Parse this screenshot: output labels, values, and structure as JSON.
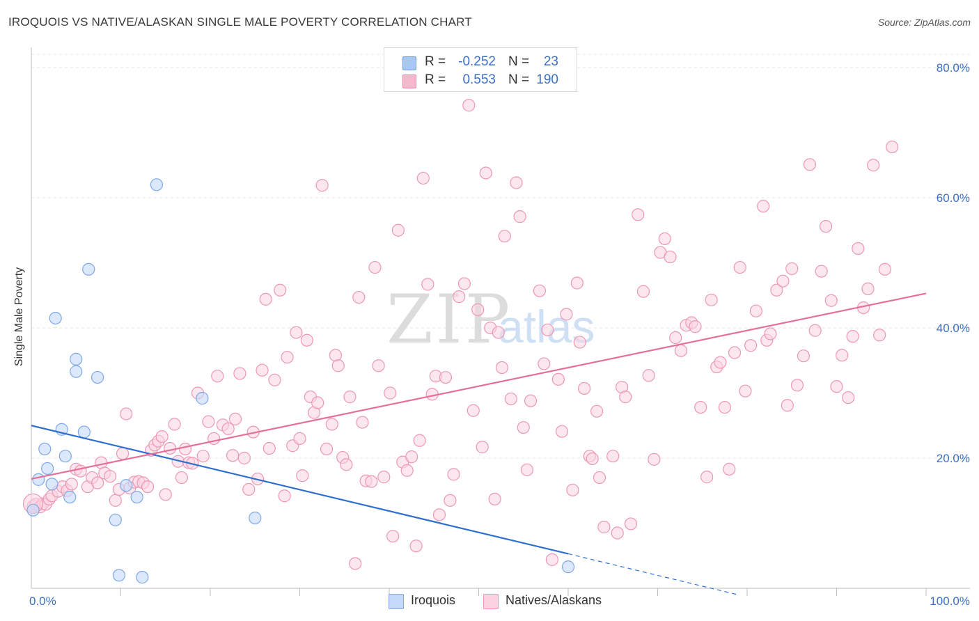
{
  "title": "IROQUOIS VS NATIVE/ALASKAN SINGLE MALE POVERTY CORRELATION CHART",
  "source": "Source: ZipAtlas.com",
  "watermark": {
    "zip": "ZIP",
    "atlas": "atlas"
  },
  "legend": {
    "rows": [
      {
        "r_label": "R =",
        "r_value": "-0.252",
        "n_label": "N =",
        "n_value": "23",
        "color": "#a9c8f0",
        "border": "#6d9fe0"
      },
      {
        "r_label": "R =",
        "r_value": "0.553",
        "n_label": "N =",
        "n_value": "190",
        "color": "#f6b8cc",
        "border": "#e889a8"
      }
    ]
  },
  "bottom_legend": [
    {
      "label": "Iroquois",
      "color": "#c5dafa",
      "border": "#7ea8e6"
    },
    {
      "label": "Natives/Alaskans",
      "color": "#fbd3e0",
      "border": "#ec97b4"
    }
  ],
  "chart_data": {
    "type": "scatter",
    "title": "IROQUOIS VS NATIVE/ALASKAN SINGLE MALE POVERTY CORRELATION CHART",
    "xlabel": "",
    "ylabel": "Single Male Poverty",
    "xlim": [
      0,
      100
    ],
    "ylim": [
      0,
      80
    ],
    "x_tick_labels": [
      "0.0%",
      "100.0%"
    ],
    "y_ticks": [
      20,
      40,
      60,
      80
    ],
    "y_tick_labels": [
      "20.0%",
      "40.0%",
      "60.0%",
      "80.0%"
    ],
    "grid": true,
    "legend_position": "top-center",
    "series": [
      {
        "name": "Iroquois",
        "color": "#7ea8e6",
        "fill": "#c5dafa",
        "line_color": "#2f6fd0",
        "trend": {
          "x0": 0,
          "y0": 25.0,
          "x1": 60,
          "y1": 5.3,
          "dash_to_x": 79,
          "dash_to_y": -1.0
        },
        "points": [
          [
            0.2,
            12.0
          ],
          [
            0.8,
            16.7
          ],
          [
            1.5,
            21.4
          ],
          [
            1.8,
            18.4
          ],
          [
            2.3,
            16.0
          ],
          [
            2.7,
            41.5
          ],
          [
            3.4,
            24.4
          ],
          [
            3.8,
            20.3
          ],
          [
            4.3,
            14.0
          ],
          [
            5.0,
            35.2
          ],
          [
            5.0,
            33.3
          ],
          [
            5.9,
            24.0
          ],
          [
            6.4,
            49.0
          ],
          [
            7.4,
            32.4
          ],
          [
            9.4,
            10.5
          ],
          [
            9.8,
            2.0
          ],
          [
            10.6,
            15.8
          ],
          [
            11.8,
            14.0
          ],
          [
            12.4,
            1.7
          ],
          [
            14.0,
            62.0
          ],
          [
            19.1,
            29.2
          ],
          [
            25.0,
            10.8
          ],
          [
            60.0,
            3.3
          ]
        ]
      },
      {
        "name": "Natives/Alaskans",
        "color": "#ec97b4",
        "fill": "#fbd3e0",
        "line_color": "#e56f98",
        "trend": {
          "x0": 0,
          "y0": 16.8,
          "x1": 100,
          "y1": 45.3
        },
        "points": [
          [
            0.2,
            12.6
          ],
          [
            0.5,
            12.9
          ],
          [
            1.0,
            12.5
          ],
          [
            1.3,
            13.0
          ],
          [
            1.6,
            12.9
          ],
          [
            2.0,
            13.7
          ],
          [
            2.3,
            14.2
          ],
          [
            3.0,
            14.9
          ],
          [
            3.5,
            15.6
          ],
          [
            4.0,
            15.0
          ],
          [
            4.5,
            16.0
          ],
          [
            5.0,
            18.3
          ],
          [
            5.5,
            18.0
          ],
          [
            6.3,
            15.6
          ],
          [
            6.8,
            17.0
          ],
          [
            7.4,
            16.2
          ],
          [
            7.8,
            19.3
          ],
          [
            8.2,
            17.7
          ],
          [
            8.8,
            17.2
          ],
          [
            9.4,
            13.5
          ],
          [
            9.8,
            15.2
          ],
          [
            10.2,
            20.7
          ],
          [
            10.6,
            26.8
          ],
          [
            11.0,
            15.4
          ],
          [
            11.5,
            16.3
          ],
          [
            12.0,
            16.4
          ],
          [
            12.5,
            16.2
          ],
          [
            13.0,
            15.6
          ],
          [
            13.4,
            21.2
          ],
          [
            13.8,
            22.0
          ],
          [
            14.2,
            22.6
          ],
          [
            14.6,
            23.3
          ],
          [
            15.0,
            14.4
          ],
          [
            15.5,
            21.5
          ],
          [
            16.0,
            25.2
          ],
          [
            16.4,
            19.5
          ],
          [
            16.8,
            17.0
          ],
          [
            17.2,
            21.4
          ],
          [
            17.6,
            19.3
          ],
          [
            18.0,
            19.2
          ],
          [
            18.6,
            30.0
          ],
          [
            19.2,
            20.3
          ],
          [
            19.8,
            25.6
          ],
          [
            20.4,
            23.0
          ],
          [
            20.8,
            32.6
          ],
          [
            21.4,
            25.1
          ],
          [
            22.0,
            24.5
          ],
          [
            22.5,
            20.4
          ],
          [
            22.8,
            26.0
          ],
          [
            23.3,
            33.0
          ],
          [
            23.8,
            20.0
          ],
          [
            24.3,
            15.2
          ],
          [
            24.8,
            24.0
          ],
          [
            25.3,
            16.8
          ],
          [
            25.8,
            33.5
          ],
          [
            26.2,
            44.4
          ],
          [
            26.6,
            21.5
          ],
          [
            27.2,
            32.0
          ],
          [
            27.8,
            45.8
          ],
          [
            28.3,
            14.2
          ],
          [
            28.6,
            35.5
          ],
          [
            29.2,
            21.9
          ],
          [
            29.6,
            39.3
          ],
          [
            30.0,
            23.0
          ],
          [
            30.3,
            17.3
          ],
          [
            30.8,
            38.1
          ],
          [
            31.2,
            29.4
          ],
          [
            31.6,
            27.0
          ],
          [
            32.0,
            28.5
          ],
          [
            32.5,
            61.9
          ],
          [
            33.0,
            21.4
          ],
          [
            33.6,
            25.2
          ],
          [
            34.0,
            35.8
          ],
          [
            34.3,
            34.2
          ],
          [
            34.8,
            20.1
          ],
          [
            35.2,
            19.0
          ],
          [
            35.6,
            29.4
          ],
          [
            36.2,
            3.8
          ],
          [
            36.6,
            44.7
          ],
          [
            37.0,
            25.5
          ],
          [
            37.4,
            16.5
          ],
          [
            38.0,
            16.4
          ],
          [
            38.4,
            49.3
          ],
          [
            38.8,
            34.2
          ],
          [
            39.4,
            17.1
          ],
          [
            40.1,
            30.0
          ],
          [
            40.4,
            8.0
          ],
          [
            41.0,
            55.0
          ],
          [
            41.5,
            19.4
          ],
          [
            42.0,
            18.1
          ],
          [
            42.5,
            20.2
          ],
          [
            43.0,
            6.5
          ],
          [
            43.4,
            22.7
          ],
          [
            43.8,
            63.0
          ],
          [
            44.3,
            46.7
          ],
          [
            44.8,
            29.8
          ],
          [
            45.2,
            32.6
          ],
          [
            45.6,
            11.3
          ],
          [
            46.3,
            32.4
          ],
          [
            46.8,
            13.5
          ],
          [
            47.2,
            17.5
          ],
          [
            47.8,
            44.8
          ],
          [
            48.4,
            46.8
          ],
          [
            48.9,
            74.2
          ],
          [
            49.4,
            27.3
          ],
          [
            49.9,
            42.8
          ],
          [
            50.4,
            21.7
          ],
          [
            50.8,
            63.8
          ],
          [
            51.3,
            40.0
          ],
          [
            51.8,
            13.7
          ],
          [
            52.2,
            39.3
          ],
          [
            52.6,
            33.9
          ],
          [
            52.9,
            54.1
          ],
          [
            53.6,
            29.1
          ],
          [
            54.2,
            62.3
          ],
          [
            54.6,
            57.1
          ],
          [
            55.0,
            24.7
          ],
          [
            55.4,
            18.2
          ],
          [
            55.8,
            28.8
          ],
          [
            56.8,
            45.7
          ],
          [
            57.3,
            34.5
          ],
          [
            57.7,
            39.7
          ],
          [
            58.2,
            4.4
          ],
          [
            58.9,
            32.1
          ],
          [
            59.3,
            24.1
          ],
          [
            59.8,
            42.1
          ],
          [
            60.5,
            15.1
          ],
          [
            61.0,
            46.9
          ],
          [
            61.3,
            37.8
          ],
          [
            61.8,
            30.7
          ],
          [
            62.4,
            20.3
          ],
          [
            62.7,
            19.9
          ],
          [
            63.2,
            27.2
          ],
          [
            63.5,
            17.0
          ],
          [
            64.0,
            9.4
          ],
          [
            65.0,
            20.3
          ],
          [
            65.5,
            8.5
          ],
          [
            66.0,
            30.9
          ],
          [
            66.4,
            29.4
          ],
          [
            67.0,
            9.9
          ],
          [
            67.8,
            57.4
          ],
          [
            68.4,
            45.6
          ],
          [
            69.0,
            32.7
          ],
          [
            69.6,
            19.8
          ],
          [
            70.3,
            51.6
          ],
          [
            70.8,
            53.7
          ],
          [
            71.4,
            50.9
          ],
          [
            72.0,
            38.5
          ],
          [
            72.6,
            36.5
          ],
          [
            73.2,
            40.4
          ],
          [
            73.8,
            40.8
          ],
          [
            74.2,
            40.2
          ],
          [
            74.8,
            27.8
          ],
          [
            75.5,
            17.1
          ],
          [
            76.0,
            44.3
          ],
          [
            76.6,
            34.0
          ],
          [
            77.0,
            34.7
          ],
          [
            77.5,
            27.8
          ],
          [
            78.0,
            18.3
          ],
          [
            78.6,
            36.2
          ],
          [
            79.2,
            49.3
          ],
          [
            79.8,
            30.3
          ],
          [
            80.4,
            37.3
          ],
          [
            81.0,
            42.6
          ],
          [
            81.8,
            58.7
          ],
          [
            82.2,
            38.1
          ],
          [
            82.6,
            39.1
          ],
          [
            83.3,
            45.8
          ],
          [
            84.0,
            47.2
          ],
          [
            84.5,
            28.1
          ],
          [
            85.0,
            49.1
          ],
          [
            85.6,
            31.2
          ],
          [
            86.3,
            35.7
          ],
          [
            87.0,
            65.1
          ],
          [
            87.6,
            39.6
          ],
          [
            88.3,
            48.7
          ],
          [
            88.8,
            55.6
          ],
          [
            89.4,
            44.2
          ],
          [
            90.0,
            31.0
          ],
          [
            90.6,
            35.8
          ],
          [
            91.3,
            29.3
          ],
          [
            91.8,
            38.7
          ],
          [
            92.4,
            52.2
          ],
          [
            93.0,
            43.1
          ],
          [
            93.5,
            46.0
          ],
          [
            94.1,
            65.0
          ],
          [
            94.8,
            38.9
          ],
          [
            95.4,
            49.0
          ],
          [
            96.2,
            67.8
          ]
        ]
      }
    ]
  }
}
